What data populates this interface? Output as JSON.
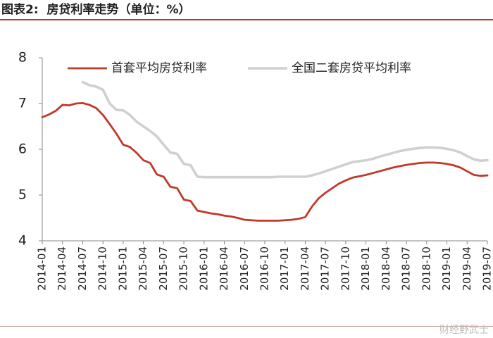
{
  "figure": {
    "title": "图表2:  房贷利率走势（单位：%）",
    "watermark": "财经野武士"
  },
  "chart_data": {
    "type": "line",
    "title": "图表2:  房贷利率走势（单位：%）",
    "xlabel": "",
    "ylabel": "",
    "ylim": [
      4,
      8
    ],
    "yticks": [
      4,
      5,
      6,
      7,
      8
    ],
    "grid": false,
    "legend_position": "top",
    "x": [
      "2014-01",
      "2014-02",
      "2014-03",
      "2014-04",
      "2014-05",
      "2014-06",
      "2014-07",
      "2014-08",
      "2014-09",
      "2014-10",
      "2014-11",
      "2014-12",
      "2015-01",
      "2015-02",
      "2015-03",
      "2015-04",
      "2015-05",
      "2015-06",
      "2015-07",
      "2015-08",
      "2015-09",
      "2015-10",
      "2015-11",
      "2015-12",
      "2016-01",
      "2016-02",
      "2016-03",
      "2016-04",
      "2016-05",
      "2016-06",
      "2016-07",
      "2016-08",
      "2016-09",
      "2016-10",
      "2016-11",
      "2016-12",
      "2017-01",
      "2017-02",
      "2017-03",
      "2017-04",
      "2017-05",
      "2017-06",
      "2017-07",
      "2017-08",
      "2017-09",
      "2017-10",
      "2017-11",
      "2017-12",
      "2018-01",
      "2018-02",
      "2018-03",
      "2018-04",
      "2018-05",
      "2018-06",
      "2018-07",
      "2018-08",
      "2018-09",
      "2018-10",
      "2018-11",
      "2018-12",
      "2019-01",
      "2019-02",
      "2019-03",
      "2019-04",
      "2019-05",
      "2019-06",
      "2019-07"
    ],
    "xtick_labels": [
      "2014-01",
      "2014-04",
      "2014-07",
      "2014-10",
      "2015-01",
      "2015-04",
      "2015-07",
      "2015-10",
      "2016-01",
      "2016-04",
      "2016-07",
      "2016-10",
      "2017-01",
      "2017-04",
      "2017-07",
      "2017-10",
      "2018-01",
      "2018-04",
      "2018-07",
      "2018-10",
      "2019-01",
      "2019-04",
      "2019-07"
    ],
    "series": [
      {
        "name": "首套平均房贷利率",
        "color": "#c0392b",
        "values": [
          6.7,
          6.76,
          6.84,
          6.97,
          6.96,
          7.0,
          7.01,
          6.97,
          6.9,
          6.75,
          6.55,
          6.34,
          6.1,
          6.05,
          5.92,
          5.76,
          5.7,
          5.45,
          5.4,
          5.18,
          5.15,
          4.9,
          4.87,
          4.66,
          4.63,
          4.6,
          4.58,
          4.55,
          4.53,
          4.5,
          4.46,
          4.45,
          4.44,
          4.44,
          4.44,
          4.44,
          4.45,
          4.46,
          4.48,
          4.52,
          4.75,
          4.93,
          5.05,
          5.15,
          5.25,
          5.32,
          5.38,
          5.41,
          5.44,
          5.48,
          5.52,
          5.56,
          5.6,
          5.63,
          5.66,
          5.68,
          5.7,
          5.71,
          5.71,
          5.7,
          5.68,
          5.65,
          5.6,
          5.52,
          5.44,
          5.42,
          5.43
        ]
      },
      {
        "name": "全国二套房贷平均利率",
        "color": "#d0d0d0",
        "values": [
          null,
          null,
          null,
          null,
          null,
          null,
          7.47,
          7.4,
          7.37,
          7.3,
          7.0,
          6.86,
          6.85,
          6.75,
          6.6,
          6.5,
          6.4,
          6.28,
          6.1,
          5.93,
          5.9,
          5.68,
          5.65,
          5.4,
          5.39,
          5.39,
          5.39,
          5.39,
          5.39,
          5.39,
          5.39,
          5.39,
          5.39,
          5.39,
          5.39,
          5.4,
          5.4,
          5.4,
          5.4,
          5.4,
          5.43,
          5.47,
          5.52,
          5.57,
          5.62,
          5.67,
          5.72,
          5.74,
          5.76,
          5.79,
          5.84,
          5.88,
          5.92,
          5.96,
          5.99,
          6.01,
          6.03,
          6.04,
          6.04,
          6.03,
          6.01,
          5.98,
          5.93,
          5.85,
          5.78,
          5.75,
          5.76
        ]
      }
    ]
  }
}
